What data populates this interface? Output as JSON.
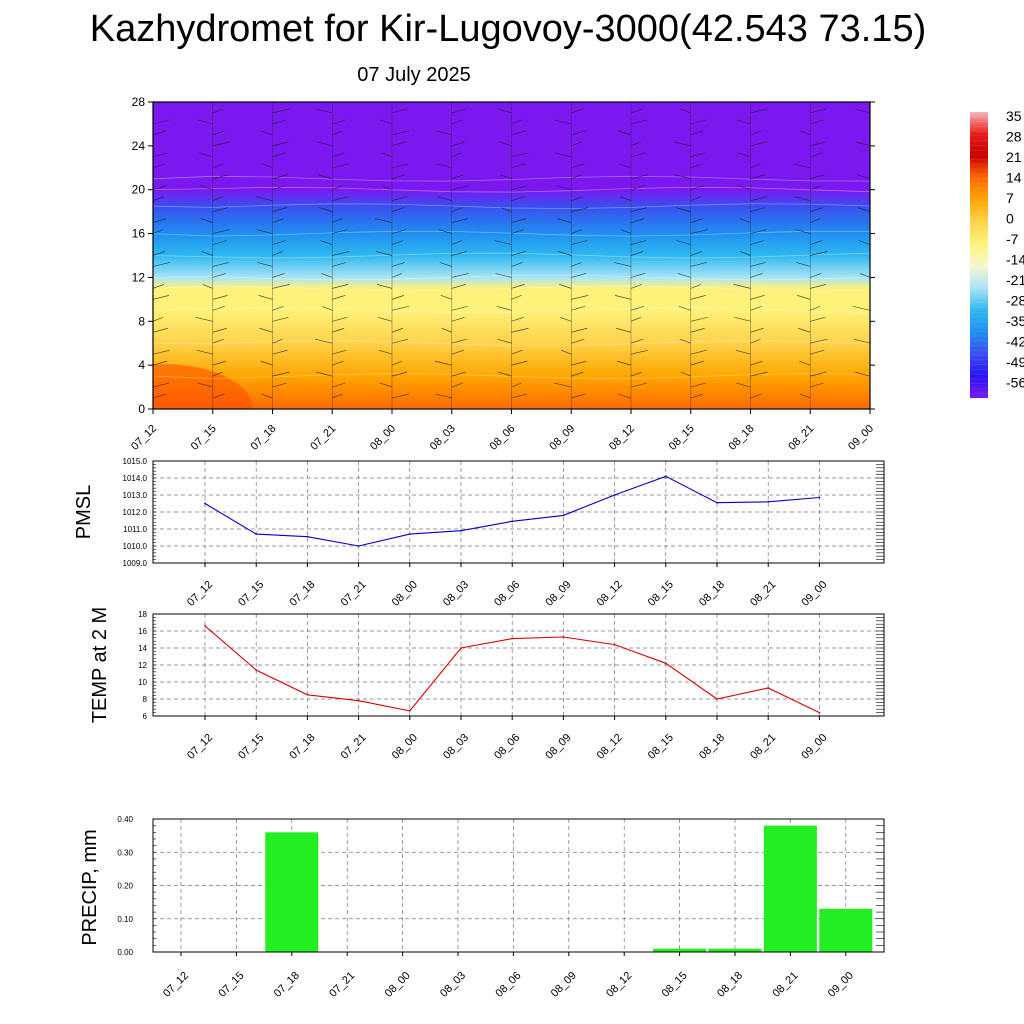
{
  "header": {
    "title": "Kazhydromet for Kir-Lugovoy-3000(42.543 73.15)",
    "date": "07 July 2025"
  },
  "chart_data": [
    {
      "id": "cross-section",
      "type": "heatmap",
      "categories": [
        "07_12",
        "07_15",
        "07_18",
        "07_21",
        "08_00",
        "08_03",
        "08_06",
        "08_09",
        "08_12",
        "08_15",
        "08_18",
        "08_21",
        "09_00"
      ],
      "ylim": [
        0,
        28
      ],
      "yticks": [
        "0",
        "4",
        "8",
        "12",
        "16",
        "20",
        "24",
        "28"
      ],
      "colorbar": {
        "labels": [
          "35",
          "28",
          "21",
          "14",
          "7",
          "0",
          "-7",
          "-14",
          "-21",
          "-28",
          "-35",
          "-42",
          "-49",
          "-56"
        ],
        "values": [
          35,
          28,
          21,
          14,
          7,
          0,
          -7,
          -14,
          -21,
          -28,
          -35,
          -42,
          -49,
          -56
        ],
        "colors": [
          "#f6b6b6",
          "#e81b1b",
          "#c80000",
          "#ff6a00",
          "#ffa600",
          "#ffd24a",
          "#fff27a",
          "#f7f7d0",
          "#a8e4f6",
          "#2fb8f0",
          "#1f8ff0",
          "#3a4ef0",
          "#2814f0",
          "#7b18f0"
        ]
      },
      "temperature_profile": [
        {
          "height": 0,
          "value": 14
        },
        {
          "height": 3,
          "value": 10
        },
        {
          "height": 6,
          "value": 5
        },
        {
          "height": 9,
          "value": -1
        },
        {
          "height": 11,
          "value": -7
        },
        {
          "height": 12,
          "value": -16
        },
        {
          "height": 14,
          "value": -28
        },
        {
          "height": 16,
          "value": -33
        },
        {
          "height": 18.5,
          "value": -40
        },
        {
          "height": 20,
          "value": -52
        },
        {
          "height": 21,
          "value": -56
        },
        {
          "height": 28,
          "value": -56
        }
      ]
    },
    {
      "id": "pmsl",
      "type": "line",
      "ylabel": "PMSL",
      "categories": [
        "07_12",
        "07_15",
        "07_18",
        "07_21",
        "08_00",
        "08_03",
        "08_06",
        "08_09",
        "08_12",
        "08_15",
        "08_18",
        "08_21",
        "09_00"
      ],
      "ylim": [
        1009.0,
        1015.0
      ],
      "yticks": [
        "1009.0",
        "1010.0",
        "1011.0",
        "1012.0",
        "1013.0",
        "1014.0",
        "1015.0"
      ],
      "series": [
        {
          "values": [
            1012.5,
            1010.7,
            1010.55,
            1010.0,
            1010.7,
            1010.9,
            1011.45,
            1011.8,
            1013.0,
            1014.1,
            1012.55,
            1012.6,
            1012.85
          ],
          "color": "#0000cc"
        }
      ]
    },
    {
      "id": "temp2m",
      "type": "line",
      "ylabel": "TEMP at 2 M",
      "categories": [
        "07_12",
        "07_15",
        "07_18",
        "07_21",
        "08_00",
        "08_03",
        "08_06",
        "08_09",
        "08_12",
        "08_15",
        "08_18",
        "08_21",
        "09_00"
      ],
      "ylim": [
        6,
        18
      ],
      "yticks": [
        "6",
        "8",
        "10",
        "12",
        "14",
        "16",
        "18"
      ],
      "series": [
        {
          "values": [
            16.6,
            11.4,
            8.5,
            7.8,
            6.6,
            14.0,
            15.1,
            15.3,
            14.4,
            12.2,
            8.0,
            9.3,
            6.4
          ],
          "color": "#dd0000"
        }
      ]
    },
    {
      "id": "precip",
      "type": "bar",
      "ylabel": "PRECIP, mm",
      "categories": [
        "07_12",
        "07_15",
        "07_18",
        "07_21",
        "08_00",
        "08_03",
        "08_06",
        "08_09",
        "08_12",
        "08_15",
        "08_18",
        "08_21",
        "09_00"
      ],
      "ylim": [
        0,
        0.4
      ],
      "yticks": [
        "0.00",
        "0.10",
        "0.20",
        "0.30",
        "0.40"
      ],
      "values": [
        0,
        0,
        0.36,
        0,
        0,
        0,
        0,
        0,
        0,
        0.01,
        0.01,
        0.38,
        0.13
      ],
      "color": "#22ee22"
    }
  ]
}
